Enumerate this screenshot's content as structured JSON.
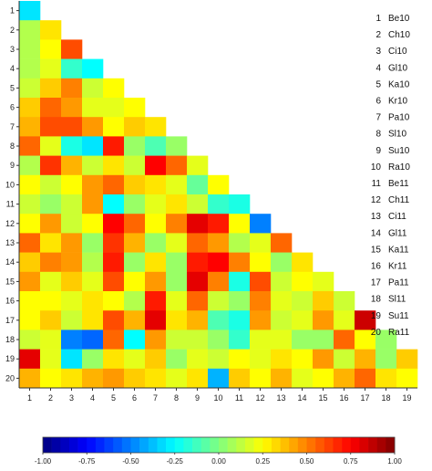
{
  "chart_data": {
    "type": "heatmap",
    "layout": "lower-triangle",
    "row_labels": [
      "1",
      "2",
      "3",
      "4",
      "5",
      "6",
      "7",
      "8",
      "9",
      "10",
      "11",
      "12",
      "13",
      "14",
      "15",
      "16",
      "17",
      "18",
      "19",
      "20"
    ],
    "col_labels": [
      "1",
      "2",
      "3",
      "4",
      "5",
      "6",
      "7",
      "8",
      "9",
      "10",
      "11",
      "12",
      "13",
      "14",
      "15",
      "16",
      "17",
      "18",
      "19"
    ],
    "values": [
      [
        -0.3
      ],
      [
        0.1,
        0.3
      ],
      [
        0.1,
        0.25,
        0.6
      ],
      [
        0.1,
        0.2,
        -0.15,
        -0.25
      ],
      [
        0.15,
        0.35,
        0.5,
        0.15,
        0.25
      ],
      [
        0.35,
        0.55,
        0.45,
        0.2,
        0.2,
        0.25
      ],
      [
        0.4,
        0.6,
        0.6,
        0.45,
        0.25,
        0.35,
        0.3
      ],
      [
        0.55,
        0.2,
        -0.2,
        -0.3,
        0.7,
        0.05,
        -0.1,
        0.05
      ],
      [
        0.1,
        0.65,
        0.4,
        0.15,
        0.3,
        0.15,
        0.75,
        0.55,
        0.2
      ],
      [
        0.25,
        0.15,
        0.25,
        0.45,
        0.55,
        0.35,
        0.3,
        0.2,
        -0.05,
        0.25
      ],
      [
        0.15,
        0.05,
        0.15,
        0.45,
        -0.25,
        0.05,
        0.2,
        0.3,
        0.15,
        -0.15,
        -0.2
      ],
      [
        0.25,
        0.45,
        0.15,
        0.25,
        0.75,
        0.55,
        0.25,
        0.5,
        0.8,
        0.7,
        0.25,
        -0.5
      ],
      [
        0.55,
        0.3,
        0.45,
        0.05,
        0.65,
        0.4,
        0.05,
        0.2,
        0.55,
        0.45,
        0.1,
        0.2,
        0.55
      ],
      [
        0.35,
        0.5,
        0.45,
        0.1,
        0.7,
        0.05,
        0.3,
        0.05,
        0.7,
        0.75,
        0.5,
        0.25,
        0.05,
        0.3
      ],
      [
        0.45,
        0.2,
        0.35,
        0.2,
        0.6,
        0.25,
        0.45,
        0.05,
        0.8,
        0.5,
        -0.2,
        0.6,
        0.15,
        0.25,
        0.2
      ],
      [
        0.25,
        0.25,
        0.2,
        0.3,
        0.25,
        0.1,
        0.7,
        0.2,
        0.55,
        0.15,
        0.05,
        0.5,
        0.2,
        0.15,
        0.35,
        0.15
      ],
      [
        0.25,
        0.35,
        0.15,
        0.3,
        0.6,
        0.4,
        0.8,
        0.3,
        0.4,
        -0.1,
        -0.2,
        0.45,
        0.15,
        0.2,
        0.45,
        0.2,
        0.85
      ],
      [
        0.15,
        0.2,
        -0.5,
        -0.55,
        0.55,
        -0.25,
        0.45,
        0.15,
        0.15,
        0.05,
        -0.15,
        0.2,
        0.2,
        0.05,
        0.05,
        0.55,
        0.25,
        0.05
      ],
      [
        0.8,
        0.2,
        -0.3,
        0.05,
        0.3,
        0.2,
        0.35,
        0.05,
        0.2,
        0.15,
        0.25,
        0.2,
        0.3,
        0.25,
        0.45,
        0.15,
        0.4,
        0.05,
        0.35
      ],
      [
        0.4,
        0.25,
        0.3,
        0.4,
        0.45,
        0.35,
        0.3,
        0.2,
        0.3,
        -0.4,
        0.35,
        0.25,
        0.4,
        0.2,
        0.25,
        0.4,
        0.55,
        0.3,
        0.25
      ]
    ],
    "legend": {
      "placement": "right",
      "numbers": [
        "1",
        "2",
        "3",
        "4",
        "5",
        "6",
        "7",
        "8",
        "9",
        "10",
        "11",
        "12",
        "13",
        "14",
        "15",
        "16",
        "17",
        "18",
        "19",
        "20"
      ],
      "names": [
        "Be10",
        "Ch10",
        "Ci10",
        "Gl10",
        "Ka10",
        "Kr10",
        "Pa10",
        "Sl10",
        "Su10",
        "Ra10",
        "Be11",
        "Ch11",
        "Ci11",
        "Gl11",
        "Ka11",
        "Kr11",
        "Pa11",
        "Sl11",
        "Su11",
        "Ra11"
      ]
    },
    "colorbar": {
      "range": [
        -1.0,
        1.0
      ],
      "steps": 40,
      "tick_values": [
        -1.0,
        -0.75,
        -0.5,
        -0.25,
        0.0,
        0.25,
        0.5,
        0.75,
        1.0
      ],
      "tick_labels": [
        "-1.00",
        "-0.75",
        "-0.50",
        "-0.25",
        "0.00",
        "0.25",
        "0.50",
        "0.75",
        "1.00"
      ],
      "colormap": "jet"
    }
  }
}
